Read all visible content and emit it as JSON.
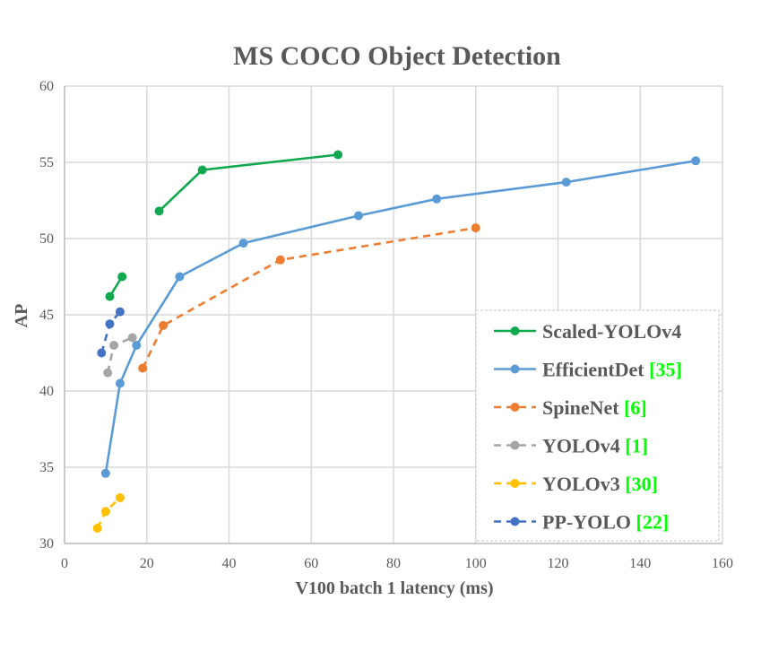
{
  "chart_data": {
    "type": "line",
    "title": "MS COCO Object Detection",
    "xlabel": "V100 batch 1 latency (ms)",
    "ylabel": "AP",
    "xlim": [
      0,
      160
    ],
    "ylim": [
      30,
      60
    ],
    "xticks": [
      0,
      20,
      40,
      60,
      80,
      100,
      120,
      140,
      160
    ],
    "yticks": [
      30,
      35,
      40,
      45,
      50,
      55,
      60
    ],
    "grid": true,
    "legend_position": "bottom-right",
    "citation_color": "#00ff00",
    "series": [
      {
        "name": "Scaled-YOLOv4",
        "citation": "",
        "color": "#12a84f",
        "dashed": false,
        "points": [
          {
            "x": 11,
            "y": 46.2
          },
          {
            "x": 14,
            "y": 47.5
          }
        ],
        "points_b": [
          {
            "x": 23,
            "y": 51.8
          },
          {
            "x": 33.5,
            "y": 54.5
          },
          {
            "x": 66.5,
            "y": 55.5
          }
        ]
      },
      {
        "name": "EfficientDet",
        "citation": "[35]",
        "color": "#5b9bd5",
        "dashed": false,
        "points": [
          {
            "x": 10,
            "y": 34.6
          },
          {
            "x": 13.5,
            "y": 40.5
          },
          {
            "x": 17.5,
            "y": 43.0
          },
          {
            "x": 28,
            "y": 47.5
          },
          {
            "x": 43.5,
            "y": 49.7
          },
          {
            "x": 71.5,
            "y": 51.5
          },
          {
            "x": 90.5,
            "y": 52.6
          },
          {
            "x": 122,
            "y": 53.7
          },
          {
            "x": 153.5,
            "y": 55.1
          }
        ]
      },
      {
        "name": "SpineNet",
        "citation": "[6]",
        "color": "#ed7d31",
        "dashed": true,
        "points": [
          {
            "x": 19,
            "y": 41.5
          },
          {
            "x": 24,
            "y": 44.3
          },
          {
            "x": 52.5,
            "y": 48.6
          },
          {
            "x": 100,
            "y": 50.7
          }
        ]
      },
      {
        "name": "YOLOv4",
        "citation": "[1]",
        "color": "#a5a5a5",
        "dashed": true,
        "points": [
          {
            "x": 10.5,
            "y": 41.2
          },
          {
            "x": 12,
            "y": 43.0
          },
          {
            "x": 16.5,
            "y": 43.5
          }
        ]
      },
      {
        "name": "YOLOv3",
        "citation": "[30]",
        "color": "#ffc000",
        "dashed": true,
        "points": [
          {
            "x": 8,
            "y": 31.0
          },
          {
            "x": 10,
            "y": 32.1
          },
          {
            "x": 13.5,
            "y": 33.0
          }
        ]
      },
      {
        "name": "PP-YOLO",
        "citation": "[22]",
        "color": "#4472c4",
        "dashed": true,
        "points": [
          {
            "x": 9,
            "y": 42.5
          },
          {
            "x": 11,
            "y": 44.4
          },
          {
            "x": 13.5,
            "y": 45.2
          }
        ]
      }
    ]
  }
}
